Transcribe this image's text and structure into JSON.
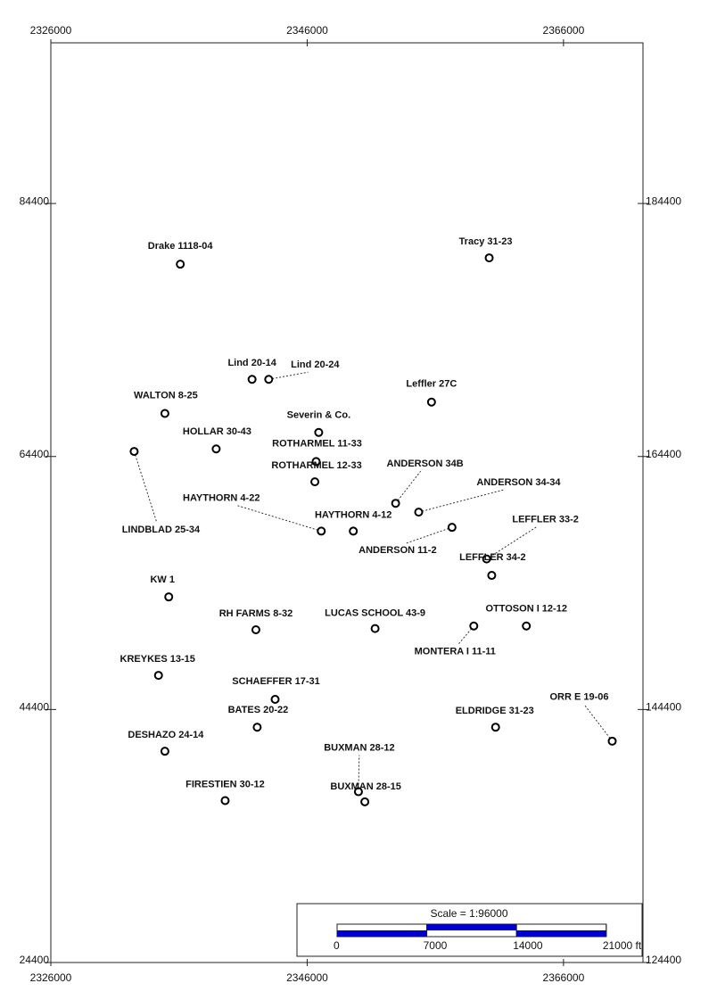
{
  "chart_data": {
    "type": "scatter",
    "xlim": [
      2326000,
      2372200
    ],
    "ylim": [
      24400,
      97100
    ],
    "y2lim": [
      124400,
      197100
    ],
    "xticks": [
      2326000,
      2346000,
      2366000
    ],
    "yticks": [
      24400,
      44400,
      64400,
      84400
    ],
    "y2ticks": [
      124400,
      144400,
      164400,
      184400
    ],
    "color": "#000000",
    "point_labels": [
      "Drake 1118-04",
      "Tracy 31-23",
      "Lind 20-14",
      "Lind 20-24",
      "Leffler 27C",
      "WALTON 8-25",
      "Severin & Co.",
      "HOLLAR 30-43",
      "LINDBLAD 25-34",
      "ROTHARMEL 11-33",
      "ROTHARMEL 12-33",
      "ANDERSON 34B",
      "ANDERSON 34-34",
      "HAYTHORN 4-22",
      "HAYTHORN 4-12",
      "ANDERSON 11-2",
      "LEFFLER 33-2",
      "LEFFLER 34-2",
      "KW 1",
      "RH FARMS 8-32",
      "LUCAS SCHOOL 43-9",
      "MONTERA I 11-11",
      "OTTOSON I 12-12",
      "KREYKES 13-15",
      "SCHAEFFER 17-31",
      "BATES 20-22",
      "ELDRIDGE 31-23",
      "ORR E 19-06",
      "DESHAZO 24-14",
      "BUXMAN 28-12",
      "BUXMAN 28-15",
      "FIRESTIEN 30-12"
    ],
    "x": [
      2336100,
      2360200,
      2341700,
      2343000,
      2355700,
      2334900,
      2346900,
      2338900,
      2332500,
      2346700,
      2346600,
      2352900,
      2354700,
      2347100,
      2349600,
      2357300,
      2360000,
      2360400,
      2335200,
      2342000,
      2351300,
      2359000,
      2363100,
      2334400,
      2343500,
      2342100,
      2360700,
      2369800,
      2334900,
      2350000,
      2350500,
      2339600
    ],
    "values": [
      79600,
      80100,
      70500,
      70500,
      68700,
      67800,
      66300,
      65000,
      64800,
      64000,
      62400,
      60700,
      60000,
      58500,
      58500,
      58800,
      56300,
      55000,
      53300,
      50700,
      50800,
      51000,
      51000,
      47100,
      45200,
      43000,
      43000,
      41900,
      41100,
      37900,
      37100,
      37200
    ],
    "scale_bar": {
      "title": "Scale = 1:96000",
      "color": "#0000cc",
      "ticks": [
        0,
        7000,
        14000,
        {
          "value": 21000,
          "label": "21000 ft"
        }
      ]
    }
  }
}
